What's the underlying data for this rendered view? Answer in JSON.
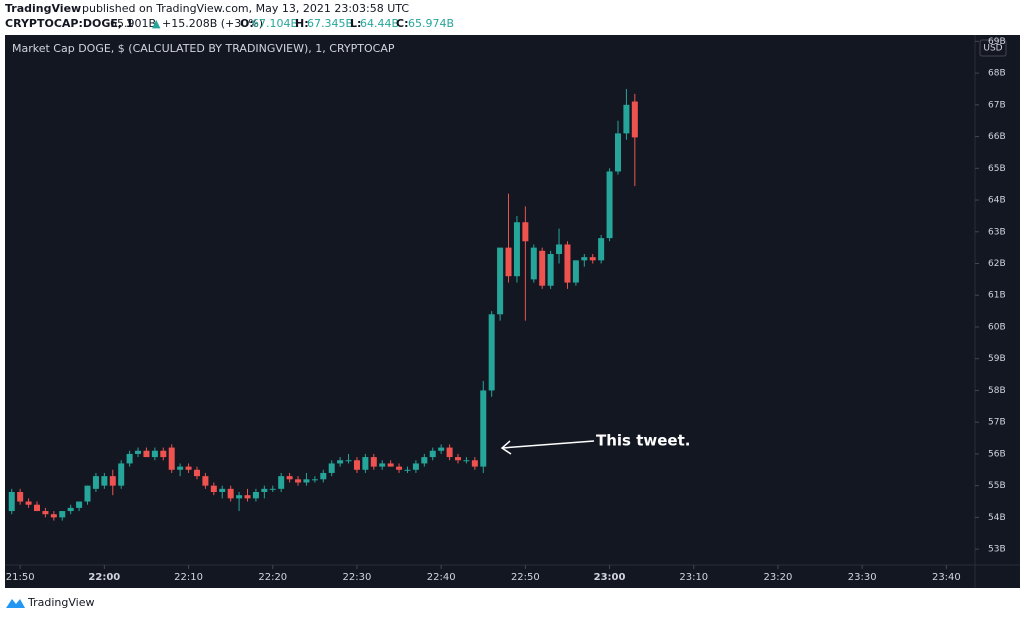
{
  "header": {
    "publisher": "TradingView",
    "published": "published on TradingView.com, May 13, 2021 23:03:58 UTC",
    "symbol": "CRYPTOCAP:DOGE, 1",
    "last": "65.901B",
    "arrow": "▲",
    "change": "+15.208B (+30%)",
    "o_label": "O:",
    "o": "67.104B",
    "h_label": "H:",
    "h": "67.345B",
    "l_label": "L:",
    "l": "64.44B",
    "c_label": "C:",
    "c": "65.974B"
  },
  "footer": {
    "brand": "TradingView"
  },
  "chart_data": {
    "type": "candlestick",
    "title": "Market Cap DOGE, $ (CALCULATED BY TRADINGVIEW), 1, CRYPTOCAP",
    "currency": "USD",
    "annotation": "This tweet.",
    "up_color": "#26a69a",
    "down_color": "#ef5350",
    "grid": false,
    "x": [
      1309,
      1310,
      1311,
      1312,
      1313,
      1314,
      1315,
      1316,
      1317,
      1318,
      1319,
      1320,
      1321,
      1322,
      1323,
      1324,
      1325,
      1326,
      1327,
      1328,
      1329,
      1330,
      1331,
      1332,
      1333,
      1334,
      1335,
      1336,
      1337,
      1338,
      1339,
      1340,
      1341,
      1342,
      1343,
      1344,
      1345,
      1346,
      1347,
      1348,
      1349,
      1350,
      1351,
      1352,
      1353,
      1354,
      1355,
      1356,
      1357,
      1358,
      1359,
      1360,
      1361,
      1362,
      1363,
      1364,
      1365,
      1366,
      1367,
      1368,
      1369,
      1370,
      1371,
      1372,
      1373,
      1374,
      1375,
      1376,
      1377,
      1378,
      1379,
      1380,
      1381,
      1382,
      1383
    ],
    "open": [
      54.2,
      54.8,
      54.5,
      54.4,
      54.2,
      54.1,
      54.0,
      54.2,
      54.3,
      54.5,
      54.9,
      55.0,
      55.3,
      55.0,
      55.7,
      56.0,
      56.1,
      55.9,
      56.1,
      56.2,
      55.5,
      55.6,
      55.5,
      55.3,
      55.0,
      54.8,
      54.9,
      54.6,
      54.7,
      54.6,
      54.8,
      54.9,
      54.9,
      55.3,
      55.2,
      55.1,
      55.2,
      55.2,
      55.4,
      55.7,
      55.8,
      55.8,
      55.5,
      55.9,
      55.6,
      55.7,
      55.6,
      55.5,
      55.5,
      55.7,
      55.9,
      56.1,
      56.2,
      55.9,
      55.8,
      55.8,
      55.6,
      58.0,
      60.4,
      62.5,
      61.6,
      63.3,
      61.5,
      62.4,
      61.3,
      62.3,
      62.6,
      61.4,
      62.1,
      62.2,
      62.1,
      62.8,
      64.9,
      66.1,
      67.104
    ],
    "high": [
      54.9,
      54.9,
      54.6,
      54.5,
      54.3,
      54.2,
      54.2,
      54.4,
      54.5,
      55.0,
      55.4,
      55.4,
      55.5,
      55.8,
      56.1,
      56.2,
      56.2,
      56.2,
      56.2,
      56.3,
      55.7,
      55.7,
      55.6,
      55.4,
      55.1,
      55.0,
      55.0,
      54.8,
      54.9,
      54.9,
      55.0,
      55.0,
      55.4,
      55.4,
      55.3,
      55.4,
      55.3,
      55.5,
      55.8,
      55.9,
      56.0,
      55.9,
      56.0,
      56.0,
      55.8,
      55.8,
      55.7,
      55.6,
      55.8,
      56.0,
      56.2,
      56.3,
      56.3,
      56.0,
      55.9,
      55.9,
      58.3,
      60.5,
      62.5,
      64.2,
      63.5,
      63.8,
      62.6,
      62.5,
      62.4,
      63.1,
      62.7,
      62.1,
      62.3,
      62.3,
      62.9,
      65.0,
      66.5,
      67.5,
      67.345
    ],
    "low": [
      54.1,
      54.4,
      54.3,
      54.2,
      54.0,
      53.9,
      53.9,
      54.1,
      54.2,
      54.4,
      54.8,
      54.9,
      54.7,
      54.9,
      55.6,
      55.9,
      55.9,
      55.8,
      55.8,
      55.4,
      55.3,
      55.4,
      55.2,
      54.9,
      54.7,
      54.6,
      54.5,
      54.2,
      54.5,
      54.5,
      54.6,
      54.8,
      54.8,
      55.1,
      55.0,
      55.0,
      55.1,
      55.1,
      55.3,
      55.6,
      55.7,
      55.4,
      55.4,
      55.5,
      55.5,
      55.6,
      55.4,
      55.4,
      55.4,
      55.6,
      55.8,
      56.0,
      55.8,
      55.7,
      55.7,
      55.5,
      55.4,
      57.8,
      60.2,
      61.4,
      61.4,
      60.2,
      61.4,
      61.2,
      61.2,
      62.0,
      61.2,
      61.3,
      61.9,
      62.0,
      62.0,
      62.7,
      64.8,
      65.9,
      64.44
    ],
    "close": [
      54.8,
      54.5,
      54.4,
      54.2,
      54.1,
      54.0,
      54.2,
      54.3,
      54.5,
      55.0,
      55.3,
      55.3,
      55.0,
      55.7,
      56.0,
      56.1,
      55.9,
      56.1,
      55.9,
      55.5,
      55.6,
      55.5,
      55.3,
      55.0,
      54.8,
      54.9,
      54.6,
      54.7,
      54.6,
      54.8,
      54.9,
      54.9,
      55.3,
      55.2,
      55.1,
      55.2,
      55.2,
      55.4,
      55.7,
      55.8,
      55.8,
      55.5,
      55.9,
      55.6,
      55.7,
      55.6,
      55.5,
      55.5,
      55.7,
      55.9,
      56.1,
      56.2,
      55.9,
      55.8,
      55.8,
      55.6,
      58.0,
      60.4,
      62.5,
      61.6,
      63.3,
      62.7,
      62.5,
      61.3,
      62.3,
      62.6,
      61.4,
      62.1,
      62.2,
      62.1,
      62.8,
      64.9,
      66.1,
      67.0,
      65.974
    ],
    "xlim": [
      1308.2,
      1423.4
    ],
    "xticks": [
      {
        "value": 1310,
        "label": "21:50"
      },
      {
        "value": 1320,
        "label": "22:00"
      },
      {
        "value": 1330,
        "label": "22:10"
      },
      {
        "value": 1340,
        "label": "22:20"
      },
      {
        "value": 1350,
        "label": "22:30"
      },
      {
        "value": 1360,
        "label": "22:40"
      },
      {
        "value": 1370,
        "label": "22:50"
      },
      {
        "value": 1380,
        "label": "23:00"
      },
      {
        "value": 1390,
        "label": "23:10"
      },
      {
        "value": 1400,
        "label": "23:20"
      },
      {
        "value": 1410,
        "label": "23:30"
      },
      {
        "value": 1420,
        "label": "23:40"
      }
    ],
    "ylim": [
      52.5,
      69.2
    ],
    "yticks": [
      {
        "value": 53,
        "label": "53B"
      },
      {
        "value": 54,
        "label": "54B"
      },
      {
        "value": 55,
        "label": "55B"
      },
      {
        "value": 56,
        "label": "56B"
      },
      {
        "value": 57,
        "label": "57B"
      },
      {
        "value": 58,
        "label": "58B"
      },
      {
        "value": 59,
        "label": "59B"
      },
      {
        "value": 60,
        "label": "60B"
      },
      {
        "value": 61,
        "label": "61B"
      },
      {
        "value": 62,
        "label": "62B"
      },
      {
        "value": 63,
        "label": "63B"
      },
      {
        "value": 64,
        "label": "64B"
      },
      {
        "value": 65,
        "label": "65B"
      },
      {
        "value": 66,
        "label": "66B"
      },
      {
        "value": 67,
        "label": "67B"
      },
      {
        "value": 68,
        "label": "68B"
      },
      {
        "value": 69,
        "label": "69B"
      }
    ]
  }
}
